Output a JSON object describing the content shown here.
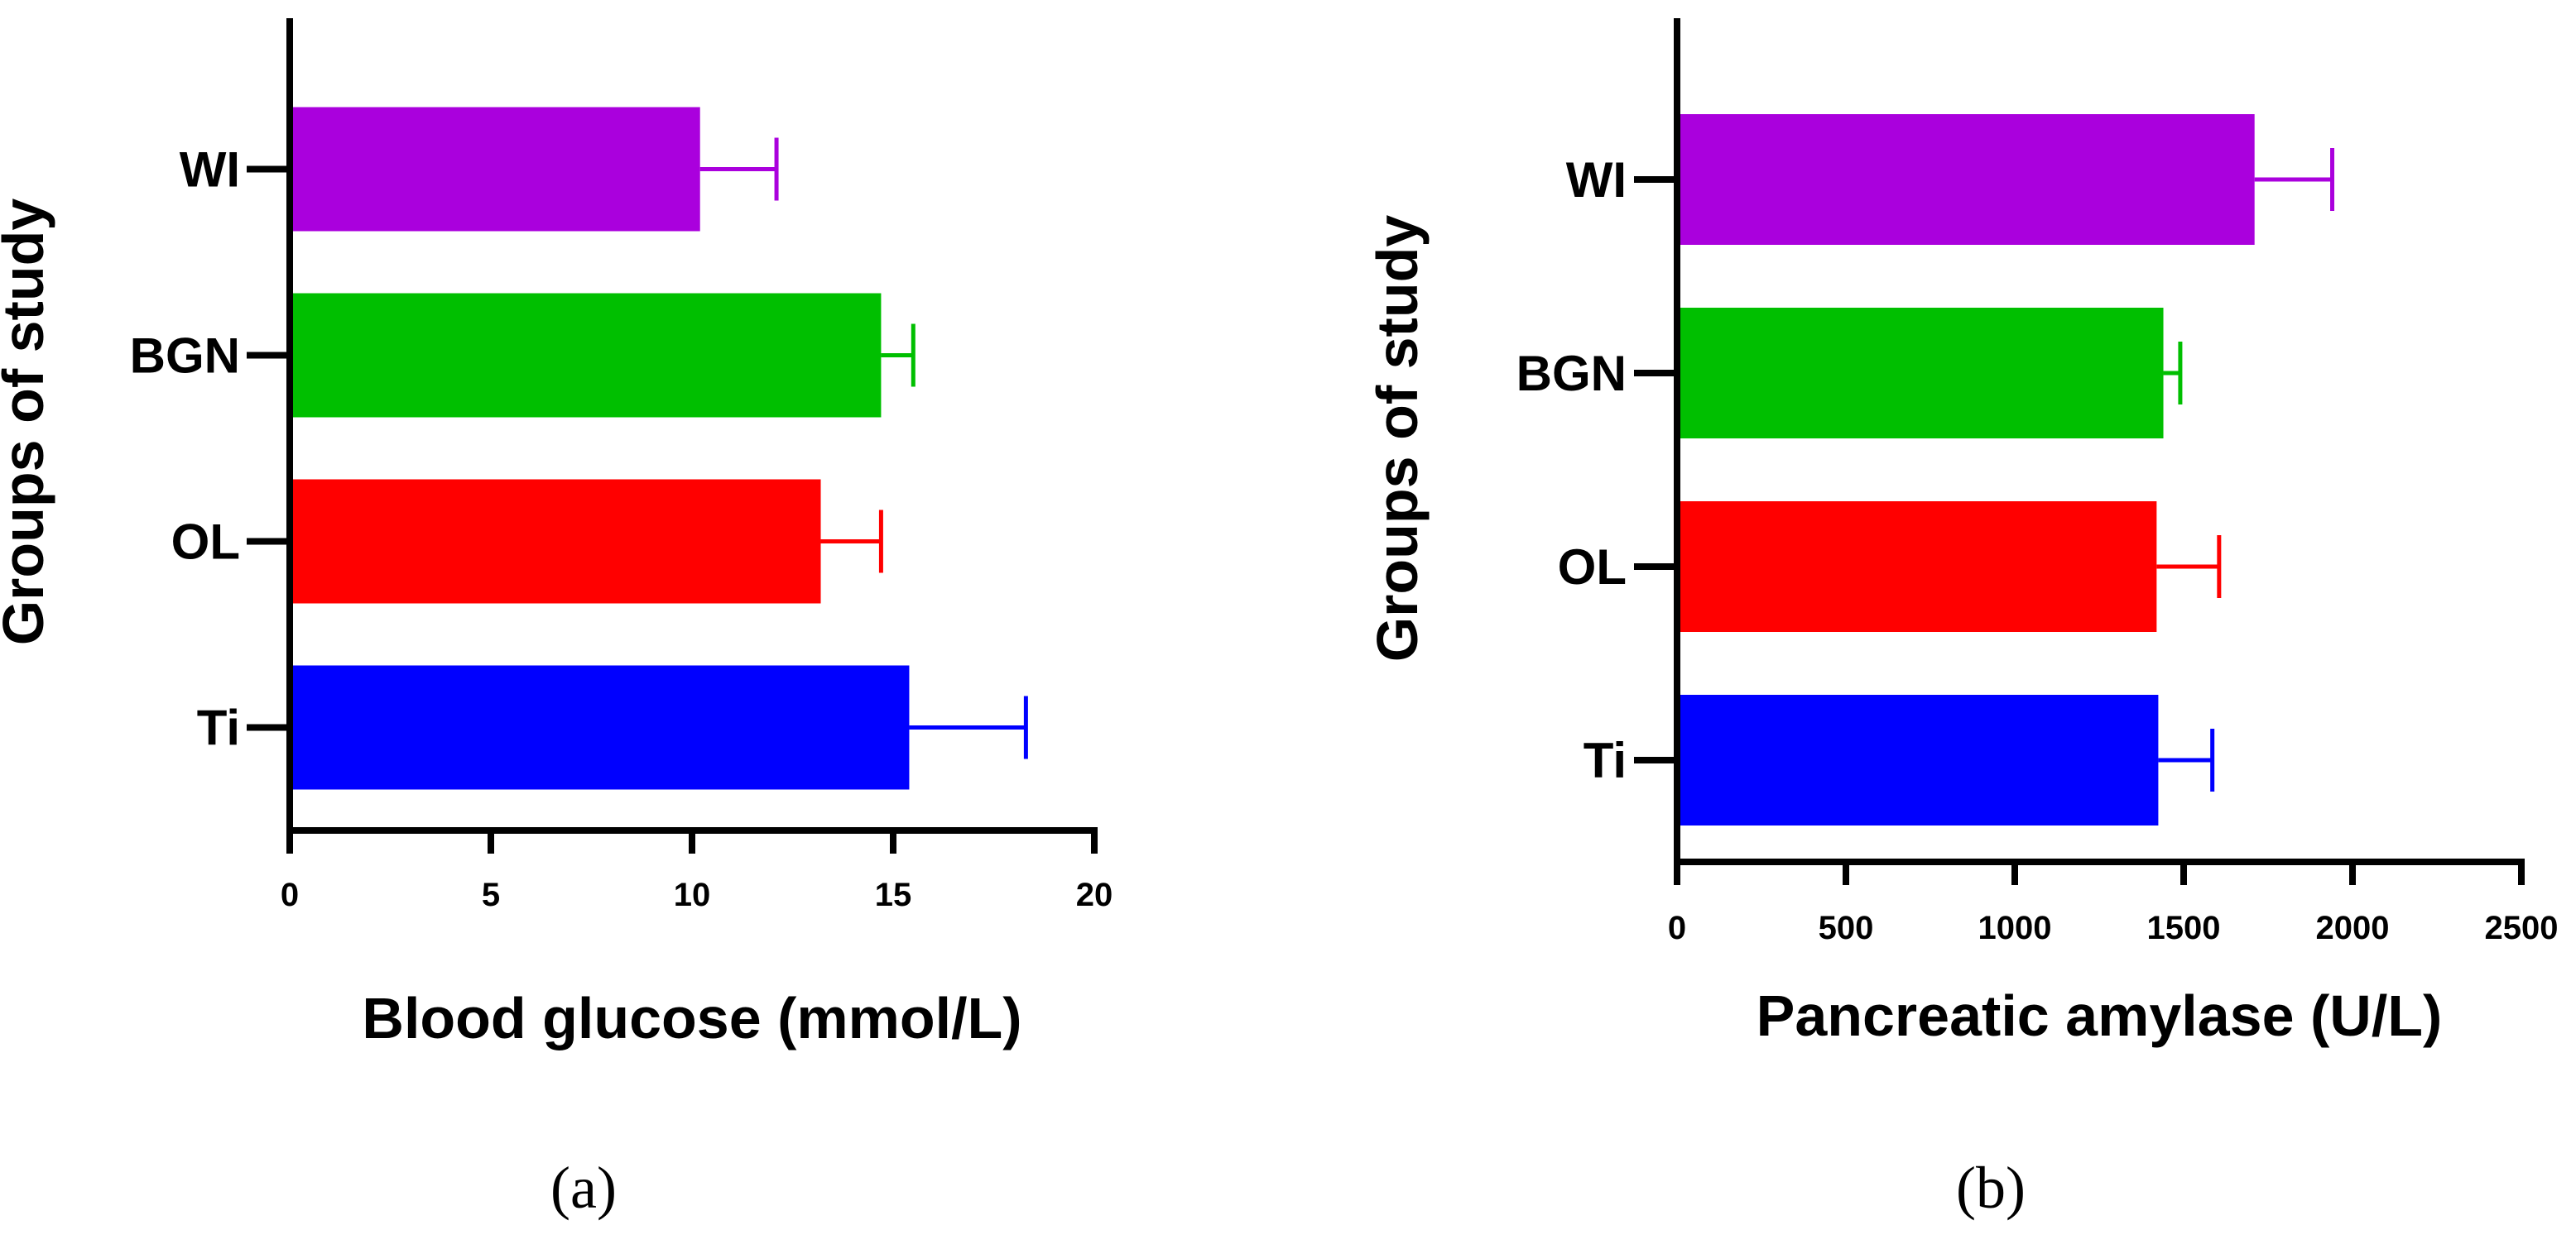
{
  "chart_data": [
    {
      "type": "bar",
      "orientation": "horizontal",
      "panel_label": "(a)",
      "xlabel": "Blood glucose (mmol/L)",
      "ylabel": "Groups of study",
      "xlim": [
        0,
        20
      ],
      "xticks": [
        "0",
        "5",
        "10",
        "15",
        "20"
      ],
      "categories": [
        "WI",
        "BGN",
        "OL",
        "Ti"
      ],
      "values": [
        10.2,
        14.7,
        13.2,
        15.4
      ],
      "errors": [
        1.9,
        0.8,
        1.5,
        2.9
      ],
      "colors": [
        "#aa00dd",
        "#00bf00",
        "#ff0000",
        "#0000ff"
      ],
      "grid": false
    },
    {
      "type": "bar",
      "orientation": "horizontal",
      "panel_label": "(b)",
      "xlabel": "Pancreatic amylase (U/L)",
      "ylabel": "Groups of study",
      "xlim": [
        0,
        2500
      ],
      "xticks": [
        "0",
        "500",
        "1000",
        "1500",
        "2000",
        "2500"
      ],
      "categories": [
        "WI",
        "BGN",
        "OL",
        "Ti"
      ],
      "values": [
        1710,
        1440,
        1420,
        1425
      ],
      "errors": [
        230,
        50,
        185,
        160
      ],
      "colors": [
        "#aa00dd",
        "#00bf00",
        "#ff0000",
        "#0000ff"
      ],
      "grid": false
    }
  ]
}
